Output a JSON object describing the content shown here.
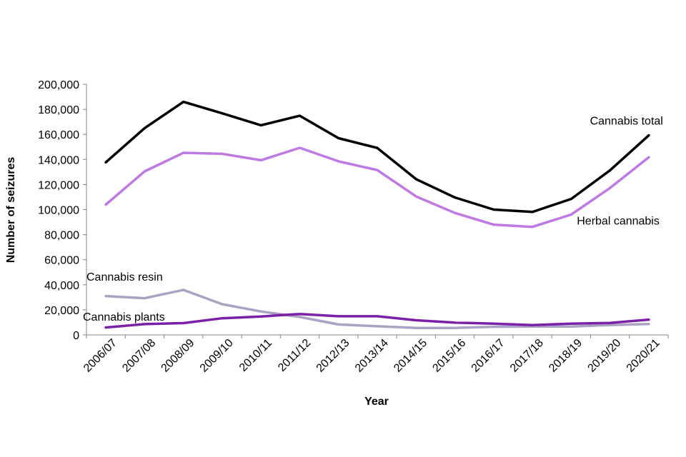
{
  "chart_data": {
    "type": "line",
    "title": "",
    "xlabel": "Year",
    "ylabel": "Number of seizures",
    "ylim": [
      0,
      200000
    ],
    "yticks": [
      0,
      20000,
      40000,
      60000,
      80000,
      100000,
      120000,
      140000,
      160000,
      180000,
      200000
    ],
    "ytick_labels": [
      "0",
      "20,000",
      "40,000",
      "60,000",
      "80,000",
      "100,000",
      "120,000",
      "140,000",
      "160,000",
      "180,000",
      "200,000"
    ],
    "grid": false,
    "legend": "none (series labelled inline)",
    "categories": [
      "2006/07",
      "2007/08",
      "2008/09",
      "2009/10",
      "2010/11",
      "2011/12",
      "2012/13",
      "2013/14",
      "2014/15",
      "2015/16",
      "2016/17",
      "2017/18",
      "2018/19",
      "2019/20",
      "2020/21"
    ],
    "series": [
      {
        "name": "Cannabis total",
        "color": "#000000",
        "label_pos": "end-above",
        "values": [
          137700,
          165000,
          186000,
          176800,
          167300,
          174900,
          157000,
          149200,
          124300,
          109700,
          100000,
          98100,
          108500,
          131300,
          159200
        ]
      },
      {
        "name": "Herbal cannabis",
        "color": "#BE79E3",
        "label_pos": "end-below",
        "values": [
          104000,
          130500,
          145300,
          144500,
          139400,
          149300,
          138500,
          131500,
          110500,
          97300,
          88000,
          86200,
          96000,
          117200,
          141700
        ]
      },
      {
        "name": "Cannabis resin",
        "color": "#ABA1C2",
        "label_pos": "start-above",
        "values": [
          31000,
          29300,
          35900,
          24500,
          18700,
          14300,
          8300,
          6900,
          5600,
          5600,
          6500,
          6600,
          6700,
          7800,
          8700
        ]
      },
      {
        "name": "Cannabis plants",
        "color": "#7A21A7",
        "label_pos": "start-above",
        "values": [
          5900,
          8600,
          9400,
          13300,
          14700,
          16700,
          14900,
          14900,
          11700,
          9800,
          9000,
          7800,
          9000,
          9500,
          12200
        ]
      }
    ]
  }
}
